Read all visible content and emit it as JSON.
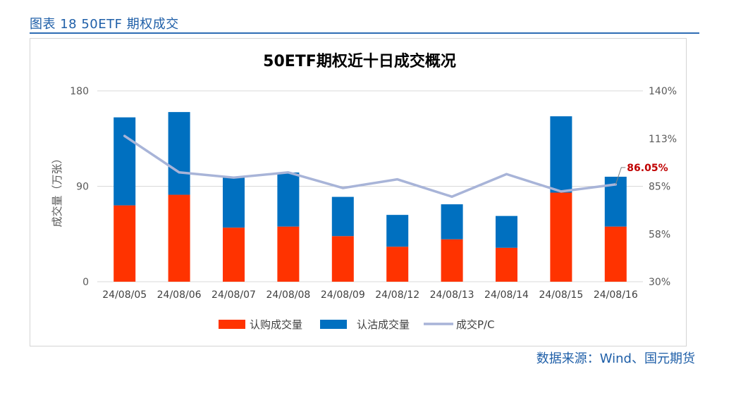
{
  "caption": "图表 18 50ETF 期权成交",
  "source": "数据来源：Wind、国元期货",
  "colors": {
    "call": "#ff3300",
    "put": "#0070c0",
    "pc_line": "#a8b4d8",
    "highlight": "#c00000",
    "caption": "#1f5fa8"
  },
  "chart_data": {
    "type": "bar",
    "title": "50ETF期权近十日成交概况",
    "ylabel": "成交量（万张）",
    "ylim": [
      0,
      180
    ],
    "yticks": [
      "0",
      "90",
      "180"
    ],
    "y2lim": [
      30,
      140
    ],
    "y2ticks": [
      "30%",
      "58%",
      "85%",
      "113%",
      "140%"
    ],
    "stacked": true,
    "grid": true,
    "legend_position": "bottom",
    "categories": [
      "24/08/05",
      "24/08/06",
      "24/08/07",
      "24/08/08",
      "24/08/09",
      "24/08/12",
      "24/08/13",
      "24/08/14",
      "24/08/15",
      "24/08/16"
    ],
    "series": [
      {
        "name": "认购成交量",
        "axis": "left",
        "kind": "bar",
        "values": [
          72,
          82,
          51,
          52,
          43,
          33,
          40,
          32,
          84,
          52
        ]
      },
      {
        "name": "认沽成交量",
        "axis": "left",
        "kind": "bar",
        "values": [
          83,
          78,
          47,
          51,
          37,
          30,
          33,
          30,
          72,
          47
        ]
      },
      {
        "name": "成交P/C",
        "axis": "right",
        "kind": "line",
        "values": [
          114,
          93,
          90,
          93,
          84,
          89,
          79,
          92,
          82,
          86.05
        ]
      }
    ],
    "annotation": {
      "text": "86.05%",
      "category": "24/08/16"
    }
  }
}
